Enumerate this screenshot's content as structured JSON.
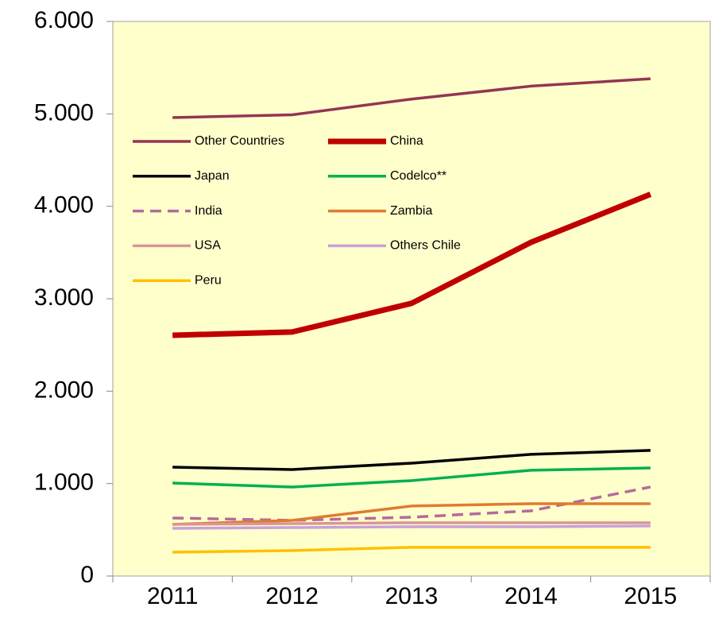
{
  "chart_data": {
    "type": "line",
    "categories": [
      "2011",
      "2012",
      "2013",
      "2014",
      "2015"
    ],
    "series": [
      {
        "name": "Other Countries",
        "color": "#953553",
        "values": [
          4960,
          4990,
          5160,
          5300,
          5380
        ]
      },
      {
        "name": "China",
        "color": "#c00000",
        "width": 7,
        "values": [
          2605,
          2640,
          2950,
          3610,
          4130
        ]
      },
      {
        "name": "Japan",
        "color": "#000000",
        "values": [
          1178,
          1152,
          1221,
          1316,
          1359
        ]
      },
      {
        "name": "Codelco**",
        "color": "#00b050",
        "values": [
          1006,
          963,
          1032,
          1144,
          1169
        ]
      },
      {
        "name": "India",
        "color": "#b36b9c",
        "dashed": true,
        "values": [
          628,
          602,
          636,
          705,
          963
        ]
      },
      {
        "name": "Zambia",
        "color": "#e07b30",
        "values": [
          559,
          602,
          757,
          782,
          782
        ]
      },
      {
        "name": "USA",
        "color": "#d99694",
        "values": [
          559,
          567,
          576,
          576,
          576
        ]
      },
      {
        "name": "Others Chile",
        "color": "#c9a0dc",
        "values": [
          516,
          524,
          533,
          533,
          542
        ]
      },
      {
        "name": "Peru",
        "color": "#ffc000",
        "values": [
          258,
          275,
          310,
          310,
          310
        ]
      }
    ],
    "ylim": [
      0,
      6000
    ],
    "yticks": [
      0,
      {
        "value": 1000,
        "label": "1.000"
      },
      {
        "value": 2000,
        "label": "2.000"
      },
      {
        "value": 3000,
        "label": "3.000"
      },
      {
        "value": 4000,
        "label": "4.000"
      },
      {
        "value": 5000,
        "label": "5.000"
      },
      {
        "value": 6000,
        "label": "6.000"
      }
    ],
    "background": "#ffffcc",
    "legend": "upper left"
  }
}
